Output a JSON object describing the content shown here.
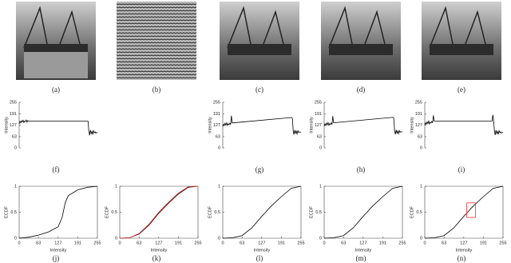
{
  "figure": {
    "images": [
      {
        "caption": "(a)"
      },
      {
        "caption": "(b)"
      },
      {
        "caption": "(c)"
      },
      {
        "caption": "(d)"
      },
      {
        "caption": "(e)"
      }
    ]
  },
  "chart_data": [
    {
      "type": "line",
      "caption": "(f)",
      "ylabel": "Intensity",
      "xlim": [
        0,
        100
      ],
      "ylim": [
        0,
        255
      ],
      "yticks": [
        0,
        63,
        127,
        191,
        255
      ],
      "x": [
        0,
        1,
        2,
        3,
        4,
        5,
        6,
        7,
        8,
        9,
        10,
        11,
        12,
        88,
        89,
        90,
        91,
        92,
        93,
        94,
        95,
        96,
        97,
        98,
        100
      ],
      "series": [
        {
          "color": "#000000",
          "values": [
            135,
            148,
            140,
            152,
            145,
            155,
            142,
            150,
            147,
            156,
            144,
            153,
            150,
            150,
            95,
            70,
            100,
            80,
            92,
            75,
            96,
            85,
            90,
            82,
            88
          ]
        }
      ]
    },
    {
      "type": "line",
      "caption": "(g)",
      "ylabel": "Intensity",
      "xlim": [
        0,
        100
      ],
      "ylim": [
        0,
        255
      ],
      "yticks": [
        0,
        63,
        127,
        191,
        255
      ],
      "x": [
        0,
        1,
        2,
        3,
        4,
        5,
        6,
        7,
        8,
        9,
        10,
        11,
        12,
        13,
        88,
        89,
        90,
        91,
        92,
        93,
        94,
        95,
        96,
        97,
        98,
        100
      ],
      "series": [
        {
          "color": "#000000",
          "values": [
            120,
            132,
            125,
            138,
            128,
            140,
            126,
            135,
            130,
            138,
            132,
            180,
            140,
            140,
            170,
            165,
            95,
            75,
            100,
            82,
            94,
            78,
            96,
            86,
            90,
            88
          ]
        }
      ]
    },
    {
      "type": "line",
      "caption": "(h)",
      "ylabel": "Intensity",
      "xlim": [
        0,
        100
      ],
      "ylim": [
        0,
        255
      ],
      "yticks": [
        0,
        63,
        127,
        191,
        255
      ],
      "x": [
        0,
        1,
        2,
        3,
        4,
        5,
        6,
        7,
        8,
        9,
        10,
        11,
        12,
        13,
        88,
        89,
        90,
        91,
        92,
        93,
        94,
        95,
        96,
        97,
        98,
        100
      ],
      "series": [
        {
          "color": "#000000",
          "values": [
            122,
            134,
            126,
            139,
            129,
            141,
            127,
            136,
            131,
            139,
            133,
            178,
            141,
            141,
            171,
            166,
            96,
            76,
            101,
            83,
            95,
            79,
            97,
            87,
            91,
            89
          ]
        }
      ]
    },
    {
      "type": "line",
      "caption": "(i)",
      "ylabel": "Intensity",
      "xlim": [
        0,
        100
      ],
      "ylim": [
        0,
        255
      ],
      "yticks": [
        0,
        63,
        127,
        191,
        255
      ],
      "x": [
        0,
        1,
        2,
        3,
        4,
        5,
        6,
        7,
        8,
        9,
        10,
        11,
        12,
        13,
        86,
        87,
        88,
        89,
        90,
        91,
        92,
        93,
        94,
        95,
        96,
        97,
        98,
        100
      ],
      "series": [
        {
          "color": "#000000",
          "values": [
            128,
            140,
            132,
            146,
            136,
            150,
            134,
            144,
            140,
            148,
            142,
            182,
            150,
            150,
            150,
            185,
            150,
            95,
            72,
            100,
            80,
            92,
            76,
            96,
            85,
            90,
            83,
            88
          ]
        }
      ]
    },
    {
      "type": "line",
      "caption": "(j)",
      "xlabel": "Intensity",
      "ylabel": "ECDF",
      "xlim": [
        0,
        255
      ],
      "ylim": [
        0,
        1
      ],
      "xticks": [
        0,
        63,
        127,
        191,
        255
      ],
      "yticks": [
        0,
        0.5,
        1
      ],
      "x": [
        0,
        32,
        63,
        95,
        127,
        140,
        150,
        160,
        191,
        223,
        255
      ],
      "series": [
        {
          "color": "#000000",
          "values": [
            0,
            0.02,
            0.06,
            0.12,
            0.22,
            0.4,
            0.68,
            0.82,
            0.93,
            0.98,
            1
          ]
        }
      ]
    },
    {
      "type": "line",
      "caption": "(k)",
      "xlabel": "Intensity",
      "ylabel": "ECDF",
      "xlim": [
        0,
        255
      ],
      "ylim": [
        0,
        1
      ],
      "xticks": [
        0,
        63,
        127,
        191,
        255
      ],
      "yticks": [
        0,
        0.5,
        1
      ],
      "x": [
        0,
        32,
        63,
        95,
        127,
        140,
        150,
        160,
        191,
        223,
        255
      ],
      "series": [
        {
          "color": "#000000",
          "values": [
            0,
            0.01,
            0.08,
            0.25,
            0.48,
            0.56,
            0.62,
            0.68,
            0.85,
            0.98,
            1
          ]
        },
        {
          "color": "#e8302a",
          "values": [
            0,
            0.01,
            0.09,
            0.27,
            0.5,
            0.58,
            0.64,
            0.7,
            0.87,
            0.99,
            1
          ]
        }
      ]
    },
    {
      "type": "line",
      "caption": "(l)",
      "xlabel": "Intensity",
      "ylabel": "ECDF",
      "xlim": [
        0,
        255
      ],
      "ylim": [
        0,
        1
      ],
      "xticks": [
        0,
        63,
        127,
        191,
        255
      ],
      "yticks": [
        0,
        0.5,
        1
      ],
      "x": [
        0,
        32,
        63,
        95,
        127,
        140,
        150,
        160,
        191,
        223,
        255
      ],
      "series": [
        {
          "color": "#000000",
          "values": [
            0,
            0.01,
            0.05,
            0.2,
            0.42,
            0.5,
            0.57,
            0.63,
            0.8,
            0.96,
            1
          ]
        }
      ]
    },
    {
      "type": "line",
      "caption": "(m)",
      "xlabel": "Intensity",
      "ylabel": "ECDF",
      "xlim": [
        0,
        255
      ],
      "ylim": [
        0,
        1
      ],
      "xticks": [
        0,
        63,
        127,
        191,
        255
      ],
      "yticks": [
        0,
        0.5,
        1
      ],
      "x": [
        0,
        32,
        63,
        95,
        127,
        140,
        150,
        160,
        191,
        223,
        255
      ],
      "series": [
        {
          "color": "#000000",
          "values": [
            0,
            0.01,
            0.05,
            0.2,
            0.42,
            0.5,
            0.57,
            0.63,
            0.8,
            0.96,
            1
          ]
        }
      ]
    },
    {
      "type": "line",
      "caption": "(n)",
      "xlabel": "Intensity",
      "ylabel": "ECDF",
      "xlim": [
        0,
        255
      ],
      "ylim": [
        0,
        1
      ],
      "xticks": [
        0,
        63,
        127,
        191,
        255
      ],
      "yticks": [
        0,
        0.5,
        1
      ],
      "x": [
        0,
        32,
        63,
        95,
        127,
        140,
        150,
        160,
        191,
        223,
        255
      ],
      "series": [
        {
          "color": "#000000",
          "values": [
            0,
            0.01,
            0.05,
            0.2,
            0.42,
            0.5,
            0.57,
            0.63,
            0.8,
            0.96,
            1
          ]
        }
      ],
      "highlight_box": {
        "x0": 137,
        "x1": 165,
        "y0": 0.4,
        "y1": 0.68,
        "color": "#e8302a"
      }
    }
  ]
}
